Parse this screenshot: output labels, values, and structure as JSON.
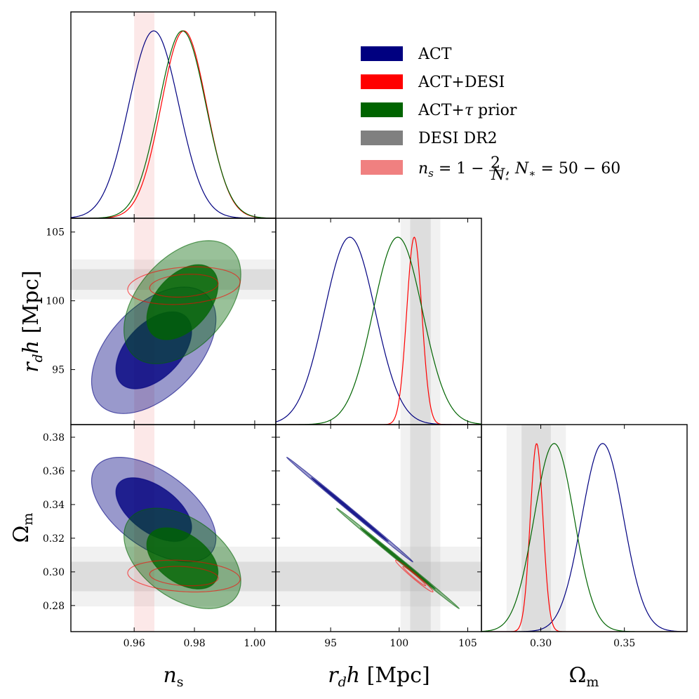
{
  "chart_data": {
    "type": "triangle",
    "parameters": [
      {
        "id": "ns",
        "label": "n",
        "label_sub": "s",
        "range": [
          0.939,
          1.007
        ],
        "ticks": [
          0.96,
          0.98,
          1.0
        ],
        "tick_labels": [
          "0.96",
          "0.98",
          "1.00"
        ]
      },
      {
        "id": "rdh",
        "label_a": "r",
        "label_a_sub": "d",
        "label_b": "h",
        "label_unit": " [Mpc]",
        "range": [
          91.0,
          106.0
        ],
        "ticks": [
          95,
          100,
          105
        ],
        "tick_labels": [
          "95",
          "100",
          "105"
        ]
      },
      {
        "id": "om",
        "label": "Ω",
        "label_sub": "m",
        "range": [
          0.2645,
          0.3875
        ],
        "ticks_2d": [
          0.28,
          0.3,
          0.32,
          0.34,
          0.36,
          0.38
        ],
        "tick_labels_2d": [
          "0.28",
          "0.30",
          "0.32",
          "0.34",
          "0.36",
          "0.38"
        ],
        "ticks_1d": [
          0.3,
          0.35
        ],
        "tick_labels_1d": [
          "0.30",
          "0.35"
        ]
      }
    ],
    "series": [
      {
        "name": "ACT",
        "color": "#000080",
        "marginals": {
          "ns": [
            0.9665,
            0.0083
          ],
          "rdh": [
            96.4,
            1.85
          ],
          "om": [
            0.337,
            0.0125
          ]
        },
        "contours": {
          "rdh_ns": {
            "c": [
              0.9665,
              96.4
            ],
            "sx": 0.0083,
            "sy": 1.85,
            "rho": 0.49
          },
          "om_ns": {
            "c": [
              0.9665,
              0.337
            ],
            "sx": 0.0083,
            "sy": 0.0125,
            "rho": -0.55
          },
          "om_rdh": {
            "c": [
              96.4,
              0.337
            ],
            "sx": 1.85,
            "sy": 0.0125,
            "rho": -0.999
          }
        }
      },
      {
        "name": "ACT+DESI",
        "color": "#ff0000",
        "marginals": {
          "ns": [
            0.9765,
            0.0075
          ],
          "rdh": [
            101.1,
            0.55
          ],
          "om": [
            0.2975,
            0.0038
          ]
        },
        "contours": {
          "rdh_ns": {
            "c": [
              0.9765,
              101.1
            ],
            "sx": 0.0075,
            "sy": 0.55,
            "rho": 0.2
          },
          "om_ns": {
            "c": [
              0.9765,
              0.2975
            ],
            "sx": 0.0075,
            "sy": 0.0038,
            "rho": -0.2
          },
          "om_rdh": {
            "c": [
              101.1,
              0.2975
            ],
            "sx": 0.55,
            "sy": 0.0038,
            "rho": -0.98
          }
        }
      },
      {
        "name": "ACT+τ prior",
        "color": "#006400",
        "marginals": {
          "ns": [
            0.976,
            0.0078
          ],
          "rdh": [
            99.9,
            1.8
          ],
          "om": [
            0.308,
            0.012
          ]
        },
        "contours": {
          "rdh_ns": {
            "c": [
              0.976,
              99.9
            ],
            "sx": 0.0078,
            "sy": 1.8,
            "rho": 0.45
          },
          "om_ns": {
            "c": [
              0.976,
              0.308
            ],
            "sx": 0.0078,
            "sy": 0.012,
            "rho": -0.45
          },
          "om_rdh": {
            "c": [
              99.9,
              0.308
            ],
            "sx": 1.8,
            "sy": 0.012,
            "rho": -0.999
          }
        }
      },
      {
        "name": "DESI DR2",
        "color": "#808080",
        "bands": {
          "rdh": [
            [
              100.8,
              102.3
            ],
            [
              100.1,
              103.0
            ]
          ],
          "om": [
            [
              0.2885,
              0.306
            ],
            [
              0.2795,
              0.315
            ]
          ]
        }
      },
      {
        "name": "n_s = 1 − 2/N_* , N_* = 50 − 60",
        "color": "#f08080",
        "bands": {
          "ns": [
            0.96,
            0.9667
          ]
        }
      }
    ],
    "legend": {
      "position": "top-right"
    },
    "legend_text": {
      "act": "ACT",
      "act_desi": "ACT+DESI",
      "act_tau_a": "ACT+",
      "act_tau_sym": "τ",
      "act_tau_b": " prior",
      "desi": "DESI DR2",
      "ns_n": "n",
      "ns_s": "s",
      "ns_eq": " = 1 − ",
      "ns_two": "2",
      "ns_N": "N",
      "ns_star": "∗",
      "ns_comma": " ,  ",
      "ns_N2": "N",
      "ns_star2": "∗",
      "ns_tail": " = 50 − 60"
    }
  }
}
